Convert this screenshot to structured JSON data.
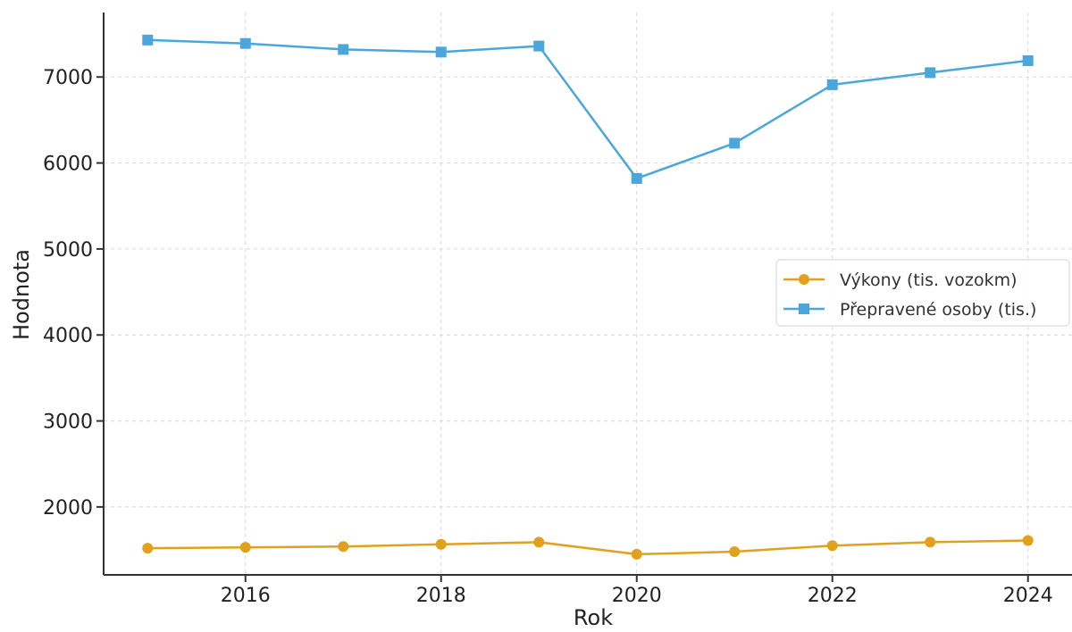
{
  "chart_data": {
    "type": "line",
    "xlabel": "Rok",
    "ylabel": "Hodnota",
    "xlim": [
      2014.55,
      2024.45
    ],
    "ylim": [
      1210,
      7750
    ],
    "xticks": [
      2016,
      2018,
      2020,
      2022,
      2024
    ],
    "yticks": [
      2000,
      3000,
      4000,
      5000,
      6000,
      7000
    ],
    "grid": true,
    "legend_position": "center-right",
    "x": [
      2015,
      2016,
      2017,
      2018,
      2019,
      2020,
      2021,
      2022,
      2023,
      2024
    ],
    "series": [
      {
        "name": "Výkony (tis. vozokm)",
        "color": "#e2a11c",
        "marker": "circle",
        "values": [
          1520,
          1530,
          1540,
          1565,
          1590,
          1450,
          1480,
          1550,
          1590,
          1610
        ]
      },
      {
        "name": "Přepravené osoby (tis.)",
        "color": "#4ba6dc",
        "marker": "square",
        "values": [
          7430,
          7390,
          7320,
          7290,
          7360,
          5820,
          6230,
          6910,
          7050,
          7190
        ]
      }
    ]
  }
}
